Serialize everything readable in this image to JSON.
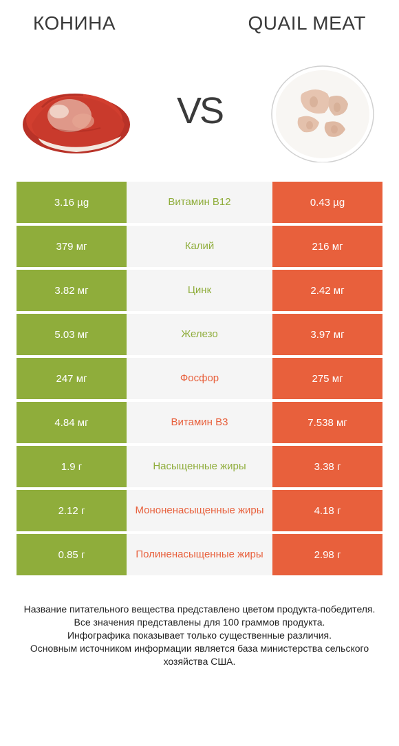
{
  "header": {
    "left_title": "КОНИНА",
    "right_title": "QUAIL MEAT",
    "vs": "VS"
  },
  "colors": {
    "left_bar": "#8fad3b",
    "right_bar": "#e8603c",
    "mid_bg": "#f5f5f5",
    "left_win_text": "#8fad3b",
    "right_win_text": "#e8603c"
  },
  "rows": [
    {
      "left_val": "3.16 µg",
      "label": "Витамин B12",
      "right_val": "0.43 µg",
      "winner": "left"
    },
    {
      "left_val": "379 мг",
      "label": "Калий",
      "right_val": "216 мг",
      "winner": "left"
    },
    {
      "left_val": "3.82 мг",
      "label": "Цинк",
      "right_val": "2.42 мг",
      "winner": "left"
    },
    {
      "left_val": "5.03 мг",
      "label": "Железо",
      "right_val": "3.97 мг",
      "winner": "left"
    },
    {
      "left_val": "247 мг",
      "label": "Фосфор",
      "right_val": "275 мг",
      "winner": "right"
    },
    {
      "left_val": "4.84 мг",
      "label": "Витамин B3",
      "right_val": "7.538 мг",
      "winner": "right"
    },
    {
      "left_val": "1.9 г",
      "label": "Насыщенные жиры",
      "right_val": "3.38 г",
      "winner": "left"
    },
    {
      "left_val": "2.12 г",
      "label": "Мононенасыщенные жиры",
      "right_val": "4.18 г",
      "winner": "right"
    },
    {
      "left_val": "0.85 г",
      "label": "Полиненасыщенные жиры",
      "right_val": "2.98 г",
      "winner": "right"
    }
  ],
  "footer": {
    "line1": "Название питательного вещества представлено цветом продукта-победителя.",
    "line2": "Все значения представлены для 100 граммов продукта.",
    "line3": "Инфографика показывает только существенные различия.",
    "line4": "Основным источником информации является база министерства сельского хозяйства США."
  }
}
